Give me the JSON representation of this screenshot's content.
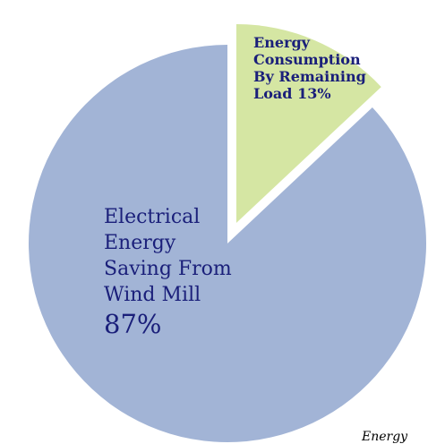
{
  "chart_data": {
    "type": "pie",
    "slices": [
      {
        "label_lines": [
          "Electrical",
          "Energy",
          "Saving From",
          "Wind Mill"
        ],
        "percent_text": "87%",
        "value": 87,
        "color": "#a2b4d6"
      },
      {
        "label_lines": [
          "Energy",
          "Consumption",
          "By Remaining",
          "Load"
        ],
        "percent_text": "13%",
        "value": 13,
        "color": "#d5e6a3"
      }
    ],
    "exploded_slice": "Energy Consumption By Remaining Load",
    "label_color": "#1a1f7a",
    "caption": "Energy"
  }
}
